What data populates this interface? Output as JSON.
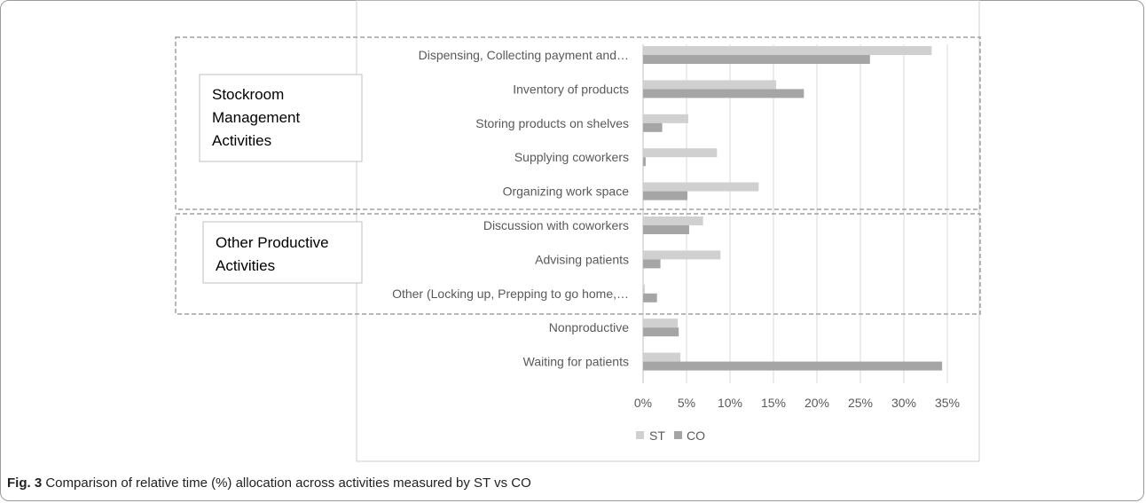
{
  "caption": {
    "fig_label": "Fig. 3",
    "text": "Comparison of relative time (%) allocation across activities measured by ST vs CO"
  },
  "groups": [
    {
      "label_lines": [
        "Stockroom",
        "Management",
        "Activities"
      ]
    },
    {
      "label_lines": [
        "Other Productive",
        "Activities"
      ]
    }
  ],
  "colors": {
    "ST": "#d0d0d0",
    "CO": "#a5a5a5",
    "grid": "#d9d9d9",
    "dashed": "#a0a0a0"
  },
  "chart_data": {
    "type": "bar",
    "orientation": "horizontal",
    "categories": [
      "Dispensing, Collecting payment and…",
      "Inventory of products",
      "Storing products on shelves",
      "Supplying coworkers",
      "Organizing work space",
      "Discussion with coworkers",
      "Advising patients",
      "Other (Locking up, Prepping to go home,…",
      "Nonproductive",
      "Waiting for patients"
    ],
    "series": [
      {
        "name": "ST",
        "values": [
          33.2,
          15.3,
          5.2,
          8.5,
          13.3,
          6.9,
          8.9,
          0.2,
          4.0,
          4.3
        ]
      },
      {
        "name": "CO",
        "values": [
          26.1,
          18.5,
          2.2,
          0.3,
          5.1,
          5.3,
          2.0,
          1.6,
          4.1,
          34.4
        ]
      }
    ],
    "xlim": [
      0,
      35
    ],
    "xticks": [
      "0%",
      "5%",
      "10%",
      "15%",
      "20%",
      "25%",
      "30%",
      "35%"
    ],
    "grid": true,
    "legend": "bottom"
  }
}
